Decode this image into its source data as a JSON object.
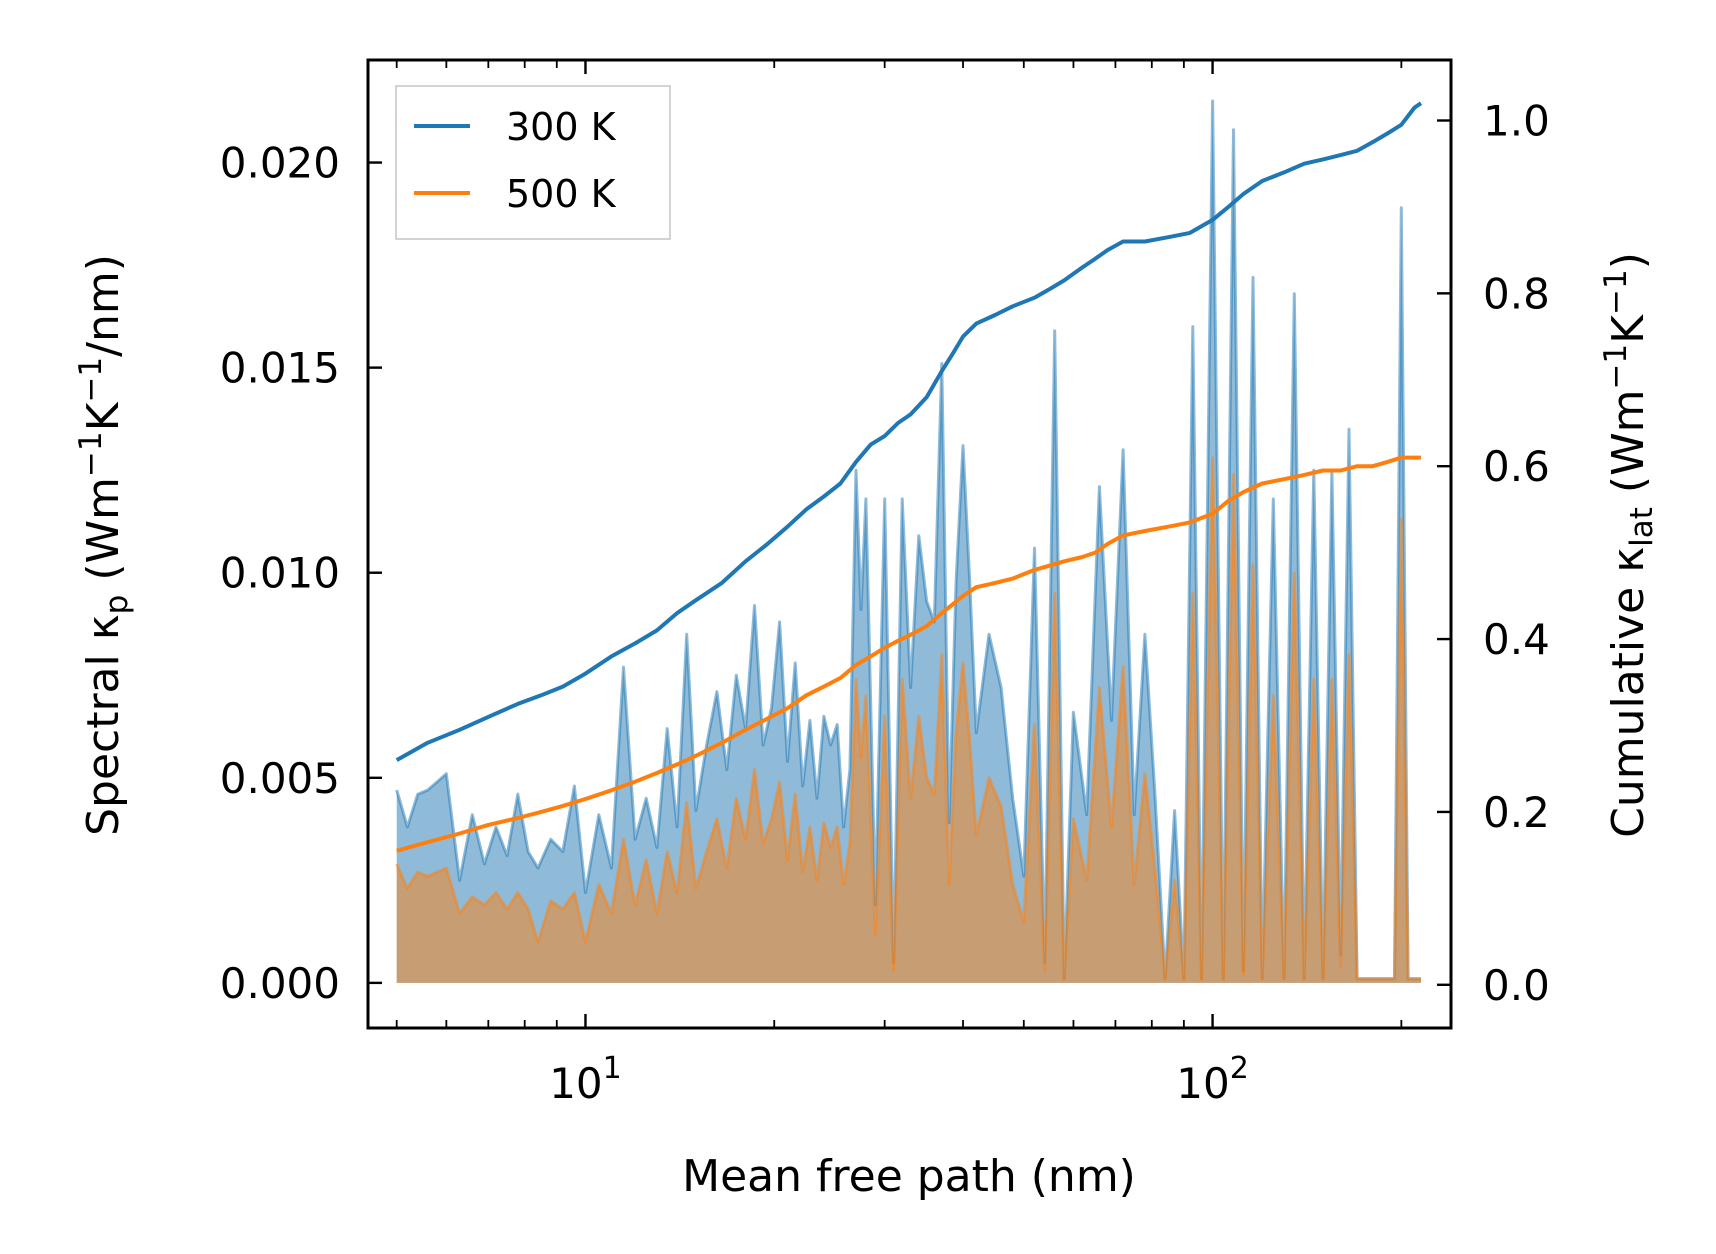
{
  "chart_data": {
    "type": "line",
    "title": "",
    "xlabel": "Mean free path (nm)",
    "ylabel_left": {
      "main": "Spectral κ",
      "sub": "p",
      "unit_open": " (Wm",
      "sup1": "−1",
      "mid": "K",
      "sup2": "−1",
      "unit_close": "/nm)"
    },
    "ylabel_right": {
      "main": "Cumulative κ",
      "sub": "lat",
      "unit_open": " (Wm",
      "sup1": "−1",
      "mid": "K",
      "sup2": "−1",
      "unit_close": ")"
    },
    "x_scale": "log",
    "xlim": [
      4.5,
      240
    ],
    "ylim_left": [
      -0.0011,
      0.0225
    ],
    "ylim_right": [
      -0.05,
      1.07
    ],
    "x_ticks": [
      {
        "value": 10,
        "base": "10",
        "exp": "1"
      },
      {
        "value": 100,
        "base": "10",
        "exp": "2"
      }
    ],
    "y_ticks_left": [
      {
        "value": 0.0,
        "label": "0.000"
      },
      {
        "value": 0.005,
        "label": "0.005"
      },
      {
        "value": 0.01,
        "label": "0.010"
      },
      {
        "value": 0.015,
        "label": "0.015"
      },
      {
        "value": 0.02,
        "label": "0.020"
      }
    ],
    "y_ticks_right": [
      {
        "value": 0.0,
        "label": "0.0"
      },
      {
        "value": 0.2,
        "label": "0.2"
      },
      {
        "value": 0.4,
        "label": "0.4"
      },
      {
        "value": 0.6,
        "label": "0.6"
      },
      {
        "value": 0.8,
        "label": "0.8"
      },
      {
        "value": 1.0,
        "label": "1.0"
      }
    ],
    "legend": {
      "position": "top-left",
      "entries": [
        "300 K",
        "500 K"
      ]
    },
    "colors": {
      "300 K": "#1f77b4",
      "500 K": "#ff7f0e"
    },
    "spectral_series": [
      {
        "name": "300 K",
        "axis": "left",
        "x": [
          5.0,
          5.2,
          5.4,
          5.6,
          5.8,
          6.0,
          6.3,
          6.6,
          6.9,
          7.2,
          7.5,
          7.8,
          8.1,
          8.4,
          8.8,
          9.2,
          9.6,
          10.0,
          10.5,
          11.0,
          11.5,
          12.0,
          12.5,
          13.0,
          13.5,
          14.0,
          14.5,
          15.0,
          15.6,
          16.2,
          16.8,
          17.4,
          18.0,
          18.6,
          19.2,
          19.8,
          20.4,
          21.0,
          21.6,
          22.2,
          22.8,
          23.4,
          24.0,
          24.6,
          25.2,
          25.8,
          26.4,
          27.0,
          27.5,
          28.0,
          29.0,
          30.0,
          31.0,
          32.0,
          33.0,
          34.0,
          35.0,
          36.0,
          37.0,
          38.0,
          39.0,
          40.0,
          41.0,
          42.0,
          44.0,
          46.0,
          48.0,
          50.0,
          52.0,
          54.0,
          56.0,
          58.0,
          60.0,
          63.0,
          66.0,
          69.0,
          72.0,
          75.0,
          78.0,
          81.0,
          84.0,
          87.0,
          90.0,
          93.0,
          96.0,
          100.0,
          104.0,
          108.0,
          112.0,
          116.0,
          120.0,
          125.0,
          130.0,
          135.0,
          140.0,
          145.0,
          150.0,
          155.0,
          160.0,
          165.0,
          170.0,
          175.0,
          180.0,
          185.0,
          190.0,
          195.0,
          200.0,
          205.0,
          210.0,
          215.0
        ],
        "y": [
          0.0047,
          0.0038,
          0.0046,
          0.0047,
          0.0049,
          0.0051,
          0.0025,
          0.0041,
          0.0029,
          0.0038,
          0.0031,
          0.0046,
          0.0032,
          0.0028,
          0.0035,
          0.0032,
          0.0048,
          0.0022,
          0.0041,
          0.0028,
          0.0077,
          0.0035,
          0.0045,
          0.0033,
          0.0062,
          0.0038,
          0.0085,
          0.0042,
          0.0058,
          0.0071,
          0.0052,
          0.0075,
          0.0062,
          0.0092,
          0.0058,
          0.0067,
          0.0088,
          0.0054,
          0.0078,
          0.0048,
          0.0064,
          0.0045,
          0.0065,
          0.0058,
          0.0063,
          0.0038,
          0.0052,
          0.0125,
          0.0091,
          0.0118,
          0.0019,
          0.0118,
          0.0005,
          0.0118,
          0.0072,
          0.0109,
          0.0093,
          0.0088,
          0.0151,
          0.0039,
          0.0098,
          0.0131,
          0.0098,
          0.0061,
          0.0085,
          0.0072,
          0.0045,
          0.0026,
          0.0106,
          0.0005,
          0.0159,
          0.0001,
          0.0066,
          0.0041,
          0.0121,
          0.0064,
          0.013,
          0.0041,
          0.0085,
          0.0045,
          0.0001,
          0.0042,
          0.0001,
          0.016,
          0.0001,
          0.0215,
          0.0001,
          0.0208,
          0.0003,
          0.0172,
          0.0001,
          0.0118,
          0.0001,
          0.0168,
          0.0001,
          0.0125,
          0.0001,
          0.0125,
          0.0007,
          0.0135,
          0.0001,
          0.0001,
          0.0001,
          0.0001,
          0.0001,
          0.0001,
          0.0189,
          0.0001,
          0.0001,
          0.0001
        ]
      },
      {
        "name": "500 K",
        "axis": "left",
        "x": [
          5.0,
          5.2,
          5.4,
          5.6,
          5.8,
          6.0,
          6.3,
          6.6,
          6.9,
          7.2,
          7.5,
          7.8,
          8.1,
          8.4,
          8.8,
          9.2,
          9.6,
          10.0,
          10.5,
          11.0,
          11.5,
          12.0,
          12.5,
          13.0,
          13.5,
          14.0,
          14.5,
          15.0,
          15.6,
          16.2,
          16.8,
          17.4,
          18.0,
          18.6,
          19.2,
          19.8,
          20.4,
          21.0,
          21.6,
          22.2,
          22.8,
          23.4,
          24.0,
          24.6,
          25.2,
          25.8,
          26.4,
          27.0,
          27.5,
          28.0,
          29.0,
          30.0,
          31.0,
          32.0,
          33.0,
          34.0,
          35.0,
          36.0,
          37.0,
          38.0,
          39.0,
          40.0,
          41.0,
          42.0,
          44.0,
          46.0,
          48.0,
          50.0,
          52.0,
          54.0,
          56.0,
          58.0,
          60.0,
          63.0,
          66.0,
          69.0,
          72.0,
          75.0,
          78.0,
          81.0,
          84.0,
          87.0,
          90.0,
          93.0,
          96.0,
          100.0,
          104.0,
          108.0,
          112.0,
          116.0,
          120.0,
          125.0,
          130.0,
          135.0,
          140.0,
          145.0,
          150.0,
          155.0,
          160.0,
          165.0,
          170.0,
          175.0,
          180.0,
          185.0,
          190.0,
          195.0,
          200.0,
          205.0,
          210.0,
          215.0
        ],
        "y": [
          0.0029,
          0.0023,
          0.0027,
          0.0026,
          0.0027,
          0.0028,
          0.0017,
          0.0021,
          0.0019,
          0.0022,
          0.0018,
          0.0022,
          0.0018,
          0.001,
          0.002,
          0.0018,
          0.0022,
          0.001,
          0.0024,
          0.0017,
          0.0035,
          0.0019,
          0.003,
          0.0017,
          0.0032,
          0.0022,
          0.0044,
          0.0023,
          0.0032,
          0.004,
          0.0028,
          0.0045,
          0.0035,
          0.0052,
          0.0034,
          0.004,
          0.0049,
          0.003,
          0.0046,
          0.0027,
          0.0038,
          0.0025,
          0.0039,
          0.0033,
          0.0038,
          0.0024,
          0.0034,
          0.0074,
          0.0055,
          0.007,
          0.0012,
          0.0065,
          0.0003,
          0.0074,
          0.0045,
          0.0065,
          0.005,
          0.0046,
          0.008,
          0.0024,
          0.0061,
          0.0078,
          0.0059,
          0.0036,
          0.005,
          0.0043,
          0.0024,
          0.0015,
          0.0063,
          0.0003,
          0.0095,
          0.0001,
          0.004,
          0.0025,
          0.0072,
          0.0038,
          0.0077,
          0.0024,
          0.0051,
          0.0027,
          0.0001,
          0.0025,
          0.0001,
          0.0095,
          0.0001,
          0.0128,
          0.0001,
          0.0124,
          0.0002,
          0.0102,
          0.0001,
          0.007,
          0.0001,
          0.01,
          0.0001,
          0.0074,
          0.0001,
          0.0074,
          0.0004,
          0.008,
          0.0001,
          0.0001,
          0.0001,
          0.0001,
          0.0001,
          0.0001,
          0.0113,
          0.0001,
          0.0001,
          0.0001
        ]
      }
    ],
    "cumulative_series": [
      {
        "name": "300 K",
        "axis": "right",
        "x": [
          5.0,
          5.6,
          6.3,
          7.0,
          7.8,
          8.5,
          9.2,
          10.0,
          11.0,
          12.0,
          13.0,
          14.0,
          15.0,
          16.5,
          18.0,
          19.5,
          21.0,
          22.5,
          24.0,
          25.5,
          27.0,
          28.5,
          30.0,
          31.5,
          33.0,
          35.0,
          37.0,
          38.5,
          40.0,
          42.0,
          45.0,
          48.0,
          52.0,
          55.0,
          58.0,
          62.0,
          65.0,
          68.0,
          72.0,
          78.0,
          85.0,
          92.0,
          100.0,
          106.0,
          112.0,
          120.0,
          130.0,
          140.0,
          150.0,
          160.0,
          170.0,
          180.0,
          190.0,
          200.0,
          210.0,
          215.0
        ],
        "y": [
          0.26,
          0.28,
          0.295,
          0.31,
          0.325,
          0.335,
          0.345,
          0.36,
          0.38,
          0.395,
          0.41,
          0.43,
          0.445,
          0.465,
          0.49,
          0.51,
          0.53,
          0.55,
          0.565,
          0.58,
          0.605,
          0.625,
          0.635,
          0.65,
          0.66,
          0.68,
          0.71,
          0.73,
          0.75,
          0.765,
          0.775,
          0.785,
          0.795,
          0.805,
          0.815,
          0.83,
          0.84,
          0.85,
          0.86,
          0.86,
          0.865,
          0.87,
          0.885,
          0.9,
          0.915,
          0.93,
          0.94,
          0.95,
          0.955,
          0.96,
          0.965,
          0.975,
          0.985,
          0.995,
          1.015,
          1.02
        ]
      },
      {
        "name": "500 K",
        "axis": "right",
        "x": [
          5.0,
          5.6,
          6.3,
          7.0,
          7.8,
          8.5,
          9.2,
          10.0,
          11.0,
          12.0,
          13.0,
          14.0,
          15.0,
          16.5,
          18.0,
          19.5,
          21.0,
          22.5,
          24.0,
          25.5,
          27.0,
          28.5,
          30.0,
          31.5,
          33.0,
          35.0,
          37.0,
          38.5,
          40.0,
          42.0,
          45.0,
          48.0,
          52.0,
          55.0,
          58.0,
          62.0,
          65.0,
          68.0,
          72.0,
          78.0,
          85.0,
          92.0,
          100.0,
          106.0,
          112.0,
          120.0,
          130.0,
          140.0,
          150.0,
          160.0,
          170.0,
          180.0,
          190.0,
          200.0,
          210.0,
          215.0
        ],
        "y": [
          0.155,
          0.165,
          0.175,
          0.185,
          0.193,
          0.2,
          0.207,
          0.215,
          0.225,
          0.235,
          0.245,
          0.255,
          0.265,
          0.28,
          0.295,
          0.308,
          0.32,
          0.335,
          0.345,
          0.355,
          0.37,
          0.38,
          0.39,
          0.398,
          0.405,
          0.415,
          0.43,
          0.44,
          0.45,
          0.46,
          0.465,
          0.47,
          0.48,
          0.485,
          0.49,
          0.495,
          0.5,
          0.51,
          0.52,
          0.525,
          0.53,
          0.535,
          0.545,
          0.56,
          0.57,
          0.58,
          0.585,
          0.59,
          0.595,
          0.595,
          0.6,
          0.6,
          0.605,
          0.61,
          0.61,
          0.61
        ]
      }
    ]
  }
}
